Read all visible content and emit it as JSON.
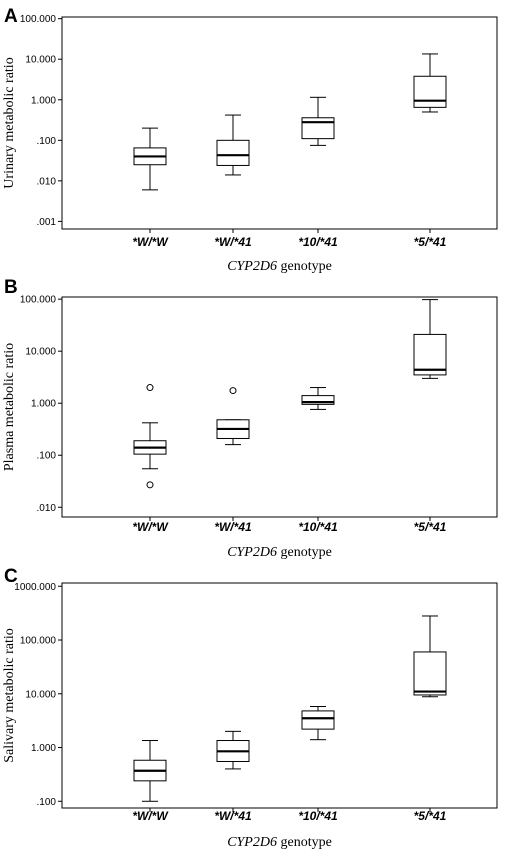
{
  "chart_data": [
    {
      "panel": "A",
      "type": "box",
      "scale": "log10",
      "ylabel": "Urinary metabolic ratio",
      "xlabel_italic": "CYP2D6",
      "xlabel_rest": " genotype",
      "ylim": [
        0.00065,
        110
      ],
      "yticks": [
        0.001,
        0.01,
        0.1,
        1,
        10,
        100
      ],
      "ytick_labels": [
        ".001",
        ".010",
        ".100",
        "1.000",
        "10.000",
        "100.000"
      ],
      "categories": [
        "*W/*W",
        "*W/*41",
        "*10/*41",
        "*5/*41"
      ],
      "boxes": [
        {
          "min": 0.006,
          "q1": 0.025,
          "median": 0.04,
          "q3": 0.065,
          "max": 0.2,
          "outliers": []
        },
        {
          "min": 0.014,
          "q1": 0.024,
          "median": 0.043,
          "q3": 0.1,
          "max": 0.42,
          "outliers": []
        },
        {
          "min": 0.075,
          "q1": 0.11,
          "median": 0.28,
          "q3": 0.36,
          "max": 1.15,
          "outliers": []
        },
        {
          "min": 0.5,
          "q1": 0.65,
          "median": 0.95,
          "q3": 3.8,
          "max": 13.5,
          "outliers": []
        }
      ]
    },
    {
      "panel": "B",
      "type": "box",
      "scale": "log10",
      "ylabel": "Plasma metabolic ratio",
      "xlabel_italic": "CYP2D6",
      "xlabel_rest": " genotype",
      "ylim": [
        0.0065,
        110
      ],
      "yticks": [
        0.01,
        0.1,
        1,
        10,
        100
      ],
      "ytick_labels": [
        ".010",
        ".100",
        "1.000",
        "10.000",
        "100.000"
      ],
      "categories": [
        "*W/*W",
        "*W/*41",
        "*10/*41",
        "*5/*41"
      ],
      "boxes": [
        {
          "min": 0.055,
          "q1": 0.105,
          "median": 0.14,
          "q3": 0.19,
          "max": 0.42,
          "outliers": [
            2.0,
            0.027
          ]
        },
        {
          "min": 0.16,
          "q1": 0.21,
          "median": 0.32,
          "q3": 0.48,
          "max": 0.48,
          "outliers": [
            1.75
          ]
        },
        {
          "min": 0.76,
          "q1": 0.95,
          "median": 1.05,
          "q3": 1.4,
          "max": 2.0,
          "outliers": []
        },
        {
          "min": 3.0,
          "q1": 3.5,
          "median": 4.4,
          "q3": 21,
          "max": 98,
          "outliers": []
        }
      ]
    },
    {
      "panel": "C",
      "type": "box",
      "scale": "log10",
      "ylabel": "Salivary metabolic ratio",
      "xlabel_italic": "CYP2D6",
      "xlabel_rest": " genotype",
      "ylim": [
        0.075,
        1150
      ],
      "yticks": [
        0.1,
        1,
        10,
        100,
        1000
      ],
      "ytick_labels": [
        ".100",
        "1.000",
        "10.000",
        "100.000",
        "1000.000"
      ],
      "categories": [
        "*W/*W",
        "*W/*41",
        "*10/*41",
        "*5/*41"
      ],
      "boxes": [
        {
          "min": 0.1,
          "q1": 0.24,
          "median": 0.37,
          "q3": 0.58,
          "max": 1.35,
          "outliers": []
        },
        {
          "min": 0.4,
          "q1": 0.55,
          "median": 0.85,
          "q3": 1.35,
          "max": 2.0,
          "outliers": []
        },
        {
          "min": 1.4,
          "q1": 2.2,
          "median": 3.5,
          "q3": 4.8,
          "max": 5.8,
          "outliers": []
        },
        {
          "min": 8.8,
          "q1": 9.5,
          "median": 11,
          "q3": 60,
          "max": 280,
          "outliers": []
        }
      ]
    }
  ]
}
